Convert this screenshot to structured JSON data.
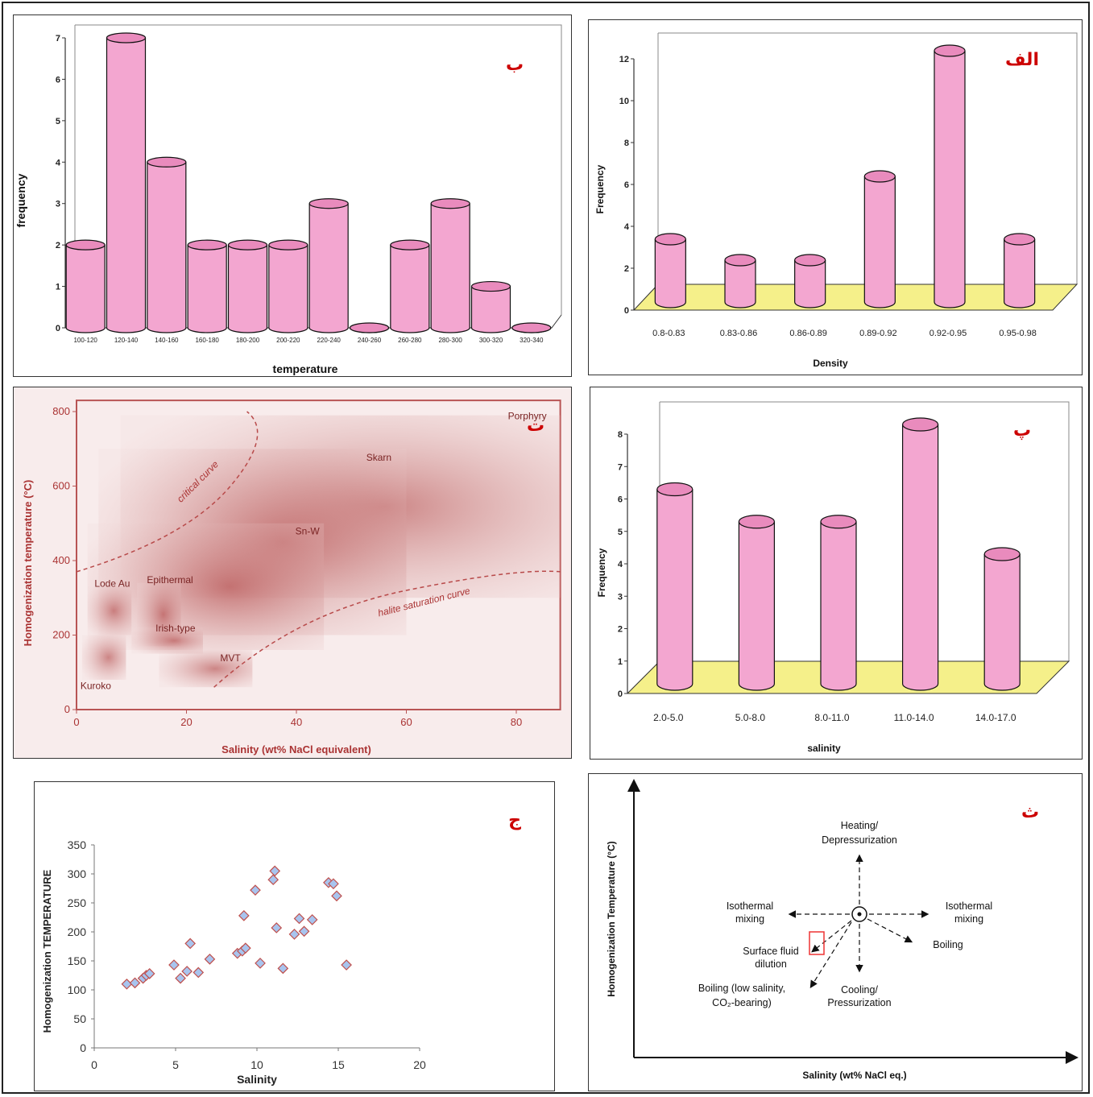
{
  "chart_data": [
    {
      "panel": "b",
      "type": "bar",
      "tag": "ب",
      "xlabel": "temperature",
      "ylabel": "frequency",
      "ylim": [
        0,
        7
      ],
      "yticks": [
        "0",
        "1",
        "2",
        "3",
        "4",
        "5",
        "6",
        "7"
      ],
      "categories": [
        "100-120",
        "120-140",
        "140-160",
        "160-180",
        "180-200",
        "200-220",
        "220-240",
        "240-260",
        "260-280",
        "280-300",
        "300-320",
        "320-340"
      ],
      "values": [
        2,
        7,
        4,
        2,
        2,
        2,
        3,
        0,
        2,
        3,
        1,
        0
      ],
      "bar_color": "#f3a6d0"
    },
    {
      "panel": "alef",
      "type": "bar",
      "tag": "الف",
      "xlabel": "Density",
      "ylabel": "Frequency",
      "ylim": [
        0,
        12
      ],
      "yticks": [
        "0",
        "2",
        "4",
        "6",
        "8",
        "10",
        "12"
      ],
      "categories": [
        "0.8-0.83",
        "0.83-0.86",
        "0.86-0.89",
        "0.89-0.92",
        "0.92-0.95",
        "0.95-0.98"
      ],
      "values": [
        3,
        2,
        2,
        6,
        12,
        3
      ],
      "bar_color": "#f3a6d0",
      "floor_color": "#f5f08a"
    },
    {
      "panel": "te",
      "type": "diagram",
      "tag": "ت",
      "xlabel": "Salinity (wt% NaCl equivalent)",
      "ylabel": "Homogenization temperature (°C)",
      "xticks": [
        "0",
        "20",
        "40",
        "60",
        "80"
      ],
      "yticks": [
        "0",
        "200",
        "400",
        "600",
        "800"
      ],
      "fields": [
        "Porphyry",
        "Skarn",
        "Sn-W",
        "Lode Au",
        "Epithermal",
        "Irish-type",
        "MVT",
        "Kuroko"
      ],
      "curves": [
        "critical curve",
        "halite saturation curve"
      ]
    },
    {
      "panel": "pe",
      "type": "bar",
      "tag": "پ",
      "xlabel": "salinity",
      "ylabel": "Frequency",
      "ylim": [
        0,
        8
      ],
      "yticks": [
        "0",
        "1",
        "2",
        "3",
        "4",
        "5",
        "6",
        "7",
        "8"
      ],
      "categories": [
        "2.0-5.0",
        "5.0-8.0",
        "8.0-11.0",
        "11.0-14.0",
        "14.0-17.0"
      ],
      "values": [
        6,
        5,
        5,
        8,
        4
      ],
      "bar_color": "#f3a6d0",
      "floor_color": "#f5f08a"
    },
    {
      "panel": "jim",
      "type": "scatter",
      "tag": "ج",
      "xlabel": "Salinity",
      "ylabel": "Homogenization TEMPERATURE",
      "xlim": [
        0,
        20
      ],
      "ylim": [
        0,
        350
      ],
      "xticks": [
        "0",
        "5",
        "10",
        "15",
        "20"
      ],
      "yticks": [
        "0",
        "50",
        "100",
        "150",
        "200",
        "250",
        "300",
        "350"
      ],
      "points": [
        [
          2.0,
          110
        ],
        [
          2.5,
          112
        ],
        [
          3.0,
          120
        ],
        [
          3.2,
          125
        ],
        [
          3.4,
          128
        ],
        [
          4.9,
          143
        ],
        [
          5.3,
          120
        ],
        [
          5.7,
          132
        ],
        [
          5.9,
          180
        ],
        [
          6.4,
          130
        ],
        [
          7.1,
          153
        ],
        [
          8.8,
          163
        ],
        [
          9.1,
          167
        ],
        [
          9.3,
          172
        ],
        [
          9.2,
          228
        ],
        [
          9.9,
          272
        ],
        [
          10.2,
          146
        ],
        [
          11.0,
          290
        ],
        [
          11.1,
          305
        ],
        [
          11.2,
          207
        ],
        [
          11.6,
          137
        ],
        [
          12.3,
          196
        ],
        [
          12.6,
          223
        ],
        [
          12.9,
          201
        ],
        [
          13.4,
          221
        ],
        [
          14.4,
          285
        ],
        [
          14.7,
          283
        ],
        [
          14.9,
          262
        ],
        [
          15.5,
          143
        ]
      ],
      "marker_color": "#a8c4ee"
    },
    {
      "panel": "se",
      "type": "diagram",
      "tag": "ث",
      "xlabel": "Salinity (wt% NaCl eq.)",
      "ylabel": "Homogenization Temperature (°C)",
      "labels": {
        "heating": [
          "Heating/",
          "Depressurization"
        ],
        "iso_left": [
          "Isothermal",
          "mixing"
        ],
        "iso_right": [
          "Isothermal",
          "mixing"
        ],
        "boiling": "Boiling",
        "surface": [
          "Surface fluid",
          "dilution"
        ],
        "boiling_low": [
          "Boiling (low salinity,",
          "CO₂-bearing)"
        ],
        "cooling": [
          "Cooling/",
          "Pressurization"
        ]
      }
    }
  ]
}
